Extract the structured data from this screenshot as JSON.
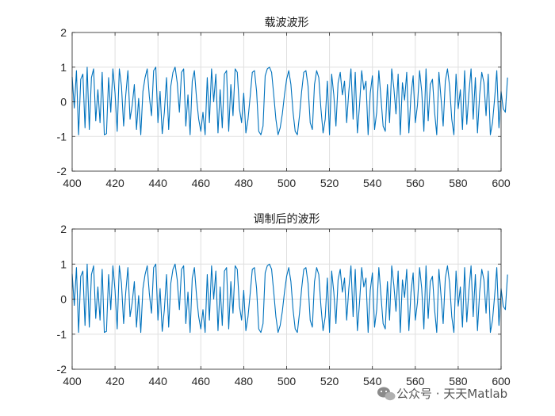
{
  "watermark": {
    "icon": "wechat-icon",
    "text": "公众号 · 天天Matlab"
  },
  "colors": {
    "series": "#0072bd",
    "grid": "#dfdfdf",
    "axis": "#262626"
  },
  "chart_data": [
    {
      "type": "line",
      "title": "载波波形",
      "xlim": [
        400,
        600
      ],
      "ylim": [
        -2,
        2
      ],
      "xticks": [
        400,
        420,
        440,
        460,
        480,
        500,
        520,
        540,
        560,
        580,
        600
      ],
      "yticks": [
        -2,
        -1,
        0,
        1,
        2
      ],
      "grid": true,
      "series": [
        {
          "x_start": 400,
          "x_step": 1,
          "values": [
            0.72,
            -0.18,
            0.9,
            -0.95,
            0.65,
            0.8,
            -0.75,
            1.0,
            -0.8,
            0.7,
            0.95,
            -0.55,
            0.35,
            -0.6,
            0.85,
            -0.95,
            -0.92,
            0.7,
            -0.3,
            0.95,
            0.25,
            -0.85,
            0.95,
            0.45,
            -0.7,
            0.2,
            0.9,
            -0.5,
            -0.1,
            0.5,
            -0.8,
            0.1,
            -0.95,
            0.3,
            0.7,
            0.95,
            0.15,
            -0.4,
            0.9,
            1.0,
            -0.6,
            0.3,
            -0.92,
            -0.3,
            0.7,
            -0.8,
            0.45,
            0.85,
            1.0,
            0.55,
            -0.3,
            0.85,
            0.95,
            -0.7,
            0.2,
            -0.95,
            0.6,
            0.9,
            0.1,
            -0.5,
            -0.85,
            -0.3,
            -0.95,
            0.7,
            -0.6,
            0.95,
            0.0,
            0.8,
            -0.9,
            0.35,
            -0.75,
            0.8,
            0.9,
            -0.85,
            0.5,
            -0.4,
            0.95,
            0.85,
            -0.2,
            -0.6,
            0.25,
            -0.9,
            -0.5,
            0.15,
            0.85,
            0.9,
            0.3,
            -0.85,
            -0.95,
            -0.7,
            0.75,
            0.95,
            1.0,
            0.85,
            0.2,
            -0.5,
            -0.95,
            -0.75,
            -0.35,
            0.2,
            0.65,
            0.9,
            0.5,
            -0.3,
            -0.85,
            -0.95,
            -0.4,
            0.3,
            0.85,
            0.9,
            0.45,
            -0.6,
            -0.8,
            0.5,
            0.9,
            0.7,
            -0.2,
            -0.9,
            -0.5,
            0.6,
            -0.95,
            0.8,
            0.2,
            -0.7,
            0.55,
            0.85,
            0.2,
            0.6,
            -0.6,
            0.3,
            0.95,
            -0.5,
            0.85,
            -0.9,
            -0.1,
            0.9,
            0.35,
            0.6,
            -0.95,
            0.25,
            0.75,
            -0.8,
            -0.3,
            0.9,
            0.1,
            -0.7,
            -0.85,
            0.5,
            -0.6,
            0.95,
            0.4,
            -0.35,
            0.8,
            -0.95,
            0.55,
            0.05,
            0.85,
            -0.9,
            0.2,
            0.75,
            -0.6,
            -0.1,
            0.9,
            0.3,
            -0.85,
            0.95,
            -0.55,
            0.5,
            0.65,
            -0.3,
            -0.95,
            0.85,
            0.1,
            -0.7,
            0.6,
            0.95,
            0.45,
            -0.5,
            -0.95,
            0.8,
            -0.2,
            0.35,
            -0.8,
            0.9,
            -0.65,
            0.25,
            0.95,
            -0.5,
            0.7,
            -0.9,
            0.2,
            0.85,
            0.55,
            -0.4,
            0.8,
            -0.95,
            -0.6,
            0.1,
            0.9,
            -0.75,
            0.3,
            -0.2,
            -0.3,
            0.7
          ]
        }
      ]
    },
    {
      "type": "line",
      "title": "调制后的波形",
      "xlim": [
        400,
        600
      ],
      "ylim": [
        -2,
        2
      ],
      "xticks": [
        400,
        420,
        440,
        460,
        480,
        500,
        520,
        540,
        560,
        580,
        600
      ],
      "yticks": [
        -2,
        -1,
        0,
        1,
        2
      ],
      "grid": true,
      "series": [
        {
          "x_start": 400,
          "x_step": 1,
          "values": [
            0.72,
            -0.18,
            0.9,
            -0.95,
            0.65,
            0.8,
            -0.75,
            1.0,
            -0.8,
            0.7,
            0.95,
            -0.55,
            0.35,
            -0.6,
            0.85,
            -0.95,
            -0.92,
            0.7,
            -0.3,
            0.95,
            0.25,
            -0.85,
            0.95,
            0.45,
            -0.7,
            0.2,
            0.9,
            -0.5,
            -0.1,
            0.5,
            -0.8,
            0.1,
            -0.95,
            0.3,
            0.7,
            0.95,
            0.15,
            -0.4,
            0.9,
            1.0,
            -0.6,
            0.3,
            -0.92,
            -0.3,
            0.7,
            -0.8,
            0.45,
            0.85,
            1.0,
            0.55,
            -0.3,
            0.85,
            0.95,
            -0.7,
            0.2,
            -0.95,
            0.6,
            0.9,
            0.1,
            -0.5,
            -0.85,
            -0.3,
            -0.95,
            0.7,
            -0.6,
            0.95,
            0.0,
            0.8,
            -0.9,
            0.35,
            -0.75,
            0.8,
            0.9,
            -0.85,
            0.5,
            -0.4,
            0.95,
            0.85,
            -0.2,
            -0.6,
            0.25,
            -0.9,
            -0.5,
            0.15,
            0.85,
            0.9,
            0.3,
            -0.85,
            -0.95,
            -0.7,
            0.75,
            0.95,
            1.0,
            0.85,
            0.2,
            -0.5,
            -0.95,
            -0.75,
            -0.35,
            0.2,
            0.65,
            0.9,
            0.5,
            -0.3,
            -0.85,
            -0.95,
            -0.4,
            0.3,
            0.85,
            0.9,
            0.45,
            -0.6,
            -0.8,
            0.5,
            0.9,
            0.7,
            -0.2,
            -0.9,
            -0.5,
            0.6,
            -0.95,
            0.8,
            0.2,
            -0.7,
            0.55,
            0.85,
            0.2,
            0.6,
            -0.6,
            0.3,
            0.95,
            -0.5,
            0.85,
            -0.9,
            -0.1,
            0.9,
            0.35,
            0.6,
            -0.95,
            0.25,
            0.75,
            -0.8,
            -0.3,
            0.9,
            0.1,
            -0.7,
            -0.85,
            0.5,
            -0.6,
            0.95,
            0.4,
            -0.35,
            0.8,
            -0.95,
            0.55,
            0.05,
            0.85,
            -0.9,
            0.2,
            0.75,
            -0.6,
            -0.1,
            0.9,
            0.3,
            -0.85,
            0.95,
            -0.55,
            0.5,
            0.65,
            -0.3,
            -0.95,
            0.85,
            0.1,
            -0.7,
            0.6,
            0.95,
            0.45,
            -0.5,
            -0.95,
            0.8,
            -0.2,
            0.35,
            -0.8,
            0.9,
            -0.65,
            0.25,
            0.95,
            -0.5,
            0.7,
            -0.9,
            0.2,
            0.85,
            0.55,
            -0.4,
            0.8,
            -0.95,
            -0.6,
            0.1,
            0.9,
            -0.75,
            0.3,
            -0.2,
            -0.3,
            0.7
          ]
        }
      ]
    }
  ]
}
